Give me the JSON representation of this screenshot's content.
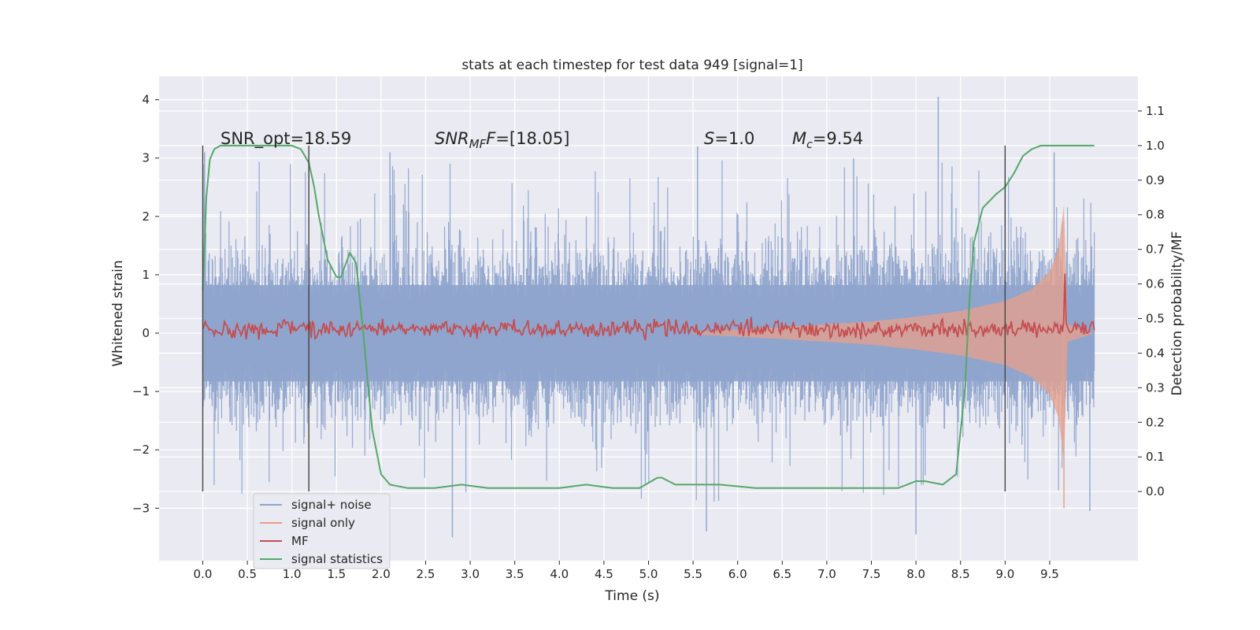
{
  "chart_data": {
    "type": "line",
    "title": "stats at each timestep for test data 949 [signal=1]",
    "xlabel": "Time (s)",
    "ylabel_left": "Whitened strain",
    "ylabel_right": "Detection probability/MF",
    "xlim": [
      -0.49,
      10.49
    ],
    "ylim_left": [
      -3.9,
      4.4
    ],
    "ylim_right": [
      -0.2,
      1.2
    ],
    "x_ticks": [
      0.0,
      0.5,
      1.0,
      1.5,
      2.0,
      2.5,
      3.0,
      3.5,
      4.0,
      4.5,
      5.0,
      5.5,
      6.0,
      6.5,
      7.0,
      7.5,
      8.0,
      8.5,
      9.0,
      9.5
    ],
    "x_tick_labels": [
      "0.0",
      "0.5",
      "1.0",
      "1.5",
      "2.0",
      "2.5",
      "3.0",
      "3.5",
      "4.0",
      "4.5",
      "5.0",
      "5.5",
      "6.0",
      "6.5",
      "7.0",
      "7.5",
      "8.0",
      "8.5",
      "9.0",
      "9.5"
    ],
    "y_left_ticks": [
      -3,
      -2,
      -1,
      0,
      1,
      2,
      3,
      4
    ],
    "y_left_tick_labels": [
      "−3",
      "−2",
      "−1",
      "0",
      "1",
      "2",
      "3",
      "4"
    ],
    "y_right_ticks": [
      0.0,
      0.1,
      0.2,
      0.3,
      0.4,
      0.5,
      0.6,
      0.7,
      0.8,
      0.9,
      1.0,
      1.1
    ],
    "y_right_tick_labels": [
      "0.0",
      "0.1",
      "0.2",
      "0.3",
      "0.4",
      "0.5",
      "0.6",
      "0.7",
      "0.8",
      "0.9",
      "1.0",
      "1.1"
    ],
    "grid": true,
    "legend_position": "lower-left",
    "annotations": {
      "snr_opt": "SNR_opt=18.59",
      "snr_mf_base": "SNR",
      "snr_mf_sub": "MF",
      "snr_mf_value": "=[18.05]",
      "s_label": "S",
      "s_value": "=1.0",
      "mc_label": "M",
      "mc_sub": "c",
      "mc_value": "=9.54"
    },
    "vertical_markers_x": [
      0.0,
      1.19,
      9.0
    ],
    "series": [
      {
        "name": "signal+ noise",
        "color": "#8fa4cc",
        "axis": "left",
        "envelope": {
          "x": [
            0.0,
            10.0
          ],
          "lower_typical": -1.5,
          "upper_typical": 1.5,
          "lower_extreme": -2.9,
          "upper_extreme": 3.0,
          "peaks": [
            {
              "x": 0.02,
              "y": 3.1
            },
            {
              "x": 2.1,
              "y": 3.1
            },
            {
              "x": 2.8,
              "y": -3.5
            },
            {
              "x": 5.55,
              "y": 3.2
            },
            {
              "x": 5.65,
              "y": -3.4
            },
            {
              "x": 7.3,
              "y": 3.0
            },
            {
              "x": 8.0,
              "y": -3.45
            },
            {
              "x": 8.25,
              "y": 4.05
            },
            {
              "x": 9.0,
              "y": 3.0
            },
            {
              "x": 9.55,
              "y": 3.1
            },
            {
              "x": 9.95,
              "y": -3.05
            }
          ]
        }
      },
      {
        "name": "signal only",
        "color": "#e8a08a",
        "axis": "left",
        "envelope": {
          "x": [
            5.5,
            6.5,
            7.5,
            8.0,
            8.5,
            9.0,
            9.3,
            9.5,
            9.6,
            9.66,
            9.7,
            10.0
          ],
          "amp": [
            0.02,
            0.1,
            0.2,
            0.28,
            0.38,
            0.55,
            0.75,
            1.05,
            1.45,
            2.2,
            0.15,
            0.0
          ]
        }
      },
      {
        "name": "MF",
        "color": "#c44e52",
        "axis": "right",
        "baseline": 0.47,
        "noise": 0.012,
        "spike": {
          "x": 9.67,
          "y": 0.63
        }
      },
      {
        "name": "signal statistics",
        "color": "#55a868",
        "axis": "right",
        "x": [
          0.0,
          0.04,
          0.08,
          0.13,
          0.2,
          0.3,
          0.5,
          0.7,
          0.9,
          1.0,
          1.1,
          1.19,
          1.25,
          1.3,
          1.4,
          1.5,
          1.55,
          1.65,
          1.72,
          1.8,
          1.9,
          2.0,
          2.1,
          2.3,
          2.6,
          2.9,
          3.2,
          3.5,
          4.0,
          4.3,
          4.6,
          4.9,
          5.1,
          5.15,
          5.3,
          5.6,
          5.8,
          6.2,
          6.6,
          7.0,
          7.5,
          7.8,
          7.9,
          8.0,
          8.1,
          8.3,
          8.45,
          8.55,
          8.6,
          8.65,
          8.75,
          8.9,
          9.0,
          9.1,
          9.2,
          9.3,
          9.4,
          9.6,
          9.8,
          10.0
        ],
        "y": [
          0.58,
          0.85,
          0.96,
          0.99,
          1.0,
          1.0,
          1.0,
          1.0,
          1.0,
          1.0,
          0.99,
          0.95,
          0.88,
          0.8,
          0.67,
          0.62,
          0.62,
          0.69,
          0.66,
          0.46,
          0.18,
          0.05,
          0.02,
          0.01,
          0.01,
          0.02,
          0.01,
          0.01,
          0.01,
          0.02,
          0.01,
          0.01,
          0.04,
          0.04,
          0.02,
          0.02,
          0.02,
          0.01,
          0.01,
          0.01,
          0.01,
          0.01,
          0.02,
          0.03,
          0.03,
          0.02,
          0.05,
          0.3,
          0.55,
          0.72,
          0.82,
          0.86,
          0.88,
          0.92,
          0.97,
          0.99,
          1.0,
          1.0,
          1.0,
          1.0
        ]
      }
    ]
  }
}
